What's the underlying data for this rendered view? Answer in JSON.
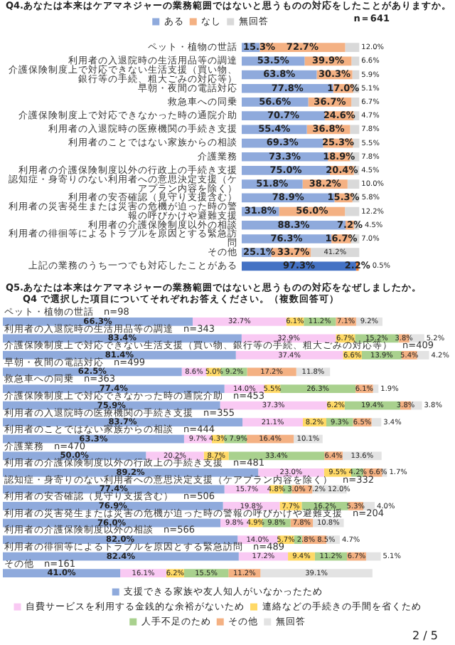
{
  "chart_data": [
    {
      "type": "bar",
      "orientation": "horizontal",
      "stacked": true,
      "grid": false,
      "tick_labels": "y",
      "legend": "top",
      "title": "Q4.あなたは本来はケアマネジャーの業務範囲ではないと思うものの対応をしたことがありますか。",
      "subtitle": "n＝641",
      "categories": [
        "ペット・植物の世話",
        "利用者の入退院時の生活用品等の調達",
        "介護保険制度上で対応できない生活支援（買い物、銀行等の手続、粗大ごみの対応等）",
        "早朝・夜間の電話対応",
        "救急車への同乗",
        "介護保険制度上で対応できなかった時の通院介助",
        "利用者の入退院時の医療機関の手続き支援",
        "利用者のことではない家族からの相談",
        "介護業務",
        "利用者の介護保険制度以外の行政上の手続き支援",
        "認知症・身寄りのない利用者への意思決定支援（ケアプラン内容を除く）",
        "利用者の安否確認（見守り支援含む）",
        "利用者の災害発生または災害の危機が迫った時の警報の呼びかけや避難支援",
        "利用者の介護保険制度以外の相談",
        "利用者の徘徊等によるトラブルを原因とする緊急訪問",
        "その他",
        "上記の業務のうち一つでも対応したことがある"
      ],
      "series": [
        {
          "name": "ある",
          "color": "#8faadc",
          "colors": [
            "#8faadc",
            "#8faadc",
            "#8faadc",
            "#8faadc",
            "#8faadc",
            "#8faadc",
            "#8faadc",
            "#8faadc",
            "#8faadc",
            "#8faadc",
            "#8faadc",
            "#8faadc",
            "#8faadc",
            "#8faadc",
            "#8faadc",
            "#8faadc",
            "#4472c4"
          ],
          "values": [
            15.3,
            53.5,
            63.8,
            77.8,
            56.6,
            70.7,
            55.4,
            69.3,
            73.3,
            75.0,
            51.8,
            78.9,
            31.8,
            88.3,
            76.3,
            25.1,
            97.3
          ],
          "value_labels": [
            "15.3%",
            "53.5%",
            "63.8%",
            "77.8%",
            "56.6%",
            "70.7%",
            "55.4%",
            "69.3%",
            "73.3%",
            "75.0%",
            "51.8%",
            "78.9%",
            "31.8%",
            "88.3%",
            "76.3%",
            "25.1%",
            "97.3%"
          ]
        },
        {
          "name": "なし",
          "color": "#f4b183",
          "colors": [
            "#f4b183",
            "#f4b183",
            "#f4b183",
            "#f4b183",
            "#f4b183",
            "#f4b183",
            "#f4b183",
            "#f4b183",
            "#f4b183",
            "#f4b183",
            "#f4b183",
            "#f4b183",
            "#f4b183",
            "#f4b183",
            "#f4b183",
            "#f4b183",
            "#ed7d31"
          ],
          "values": [
            72.7,
            39.9,
            30.3,
            17.0,
            36.7,
            24.6,
            36.8,
            25.3,
            18.9,
            20.4,
            38.2,
            15.3,
            56.0,
            7.2,
            16.7,
            33.7,
            2.2
          ],
          "value_labels": [
            "72.7%",
            "39.9%",
            "30.3%",
            "17.0%",
            "36.7%",
            "24.6%",
            "36.8%",
            "25.3%",
            "18.9%",
            "20.4%",
            "38.2%",
            "15.3%",
            "56.0%",
            "7.2%",
            "16.7%",
            "33.7%",
            "2.2%"
          ]
        },
        {
          "name": "無回答",
          "color": "#d9d9d9",
          "values": [
            12.0,
            6.6,
            5.9,
            5.1,
            6.7,
            4.7,
            7.8,
            5.5,
            7.8,
            4.5,
            10.0,
            5.8,
            12.2,
            4.5,
            7.0,
            41.2,
            0.5
          ],
          "value_labels": [
            "12.0%",
            "6.6%",
            "5.9%",
            "5.1%",
            "6.7%",
            "4.7%",
            "7.8%",
            "5.5%",
            "7.8%",
            "4.5%",
            "10.0%",
            "5.8%",
            "12.2%",
            "4.5%",
            "7.0%",
            "41.2%",
            "0.5%"
          ]
        }
      ]
    },
    {
      "type": "bar",
      "orientation": "horizontal",
      "stacked": true,
      "grid": false,
      "tick_labels": "y",
      "legend": "bottom",
      "title": "Q5.あなたは本来はケアマネジャーの業務範囲ではないと思うものの対応をなぜしましたか。",
      "subtitle": "Q4 で選択した項目についてそれぞれお答えください。（複数回答可）",
      "annotations": [
        "2 / 5"
      ],
      "categories": [
        "ペット・植物の世話　n=98",
        "利用者の入退院時の生活用品等の調達　n=343",
        "介護保険制度上で対応できない生活支援（買い物、銀行等の手続、粗大ごみの対応等）　n=409",
        "早朝・夜間の電話対応　n=499",
        "救急車への同乗　n=363",
        "介護保険制度上で対応できなかった時の通院介助　n=453",
        "利用者の入退院時の医療機関の手続き支援　n=355",
        "利用者のことではない家族からの相談　n=444",
        "介護業務　n=470",
        "利用者の介護保険制度以外の行政上の手続き支援　n=481",
        "認知症・身寄りのない利用者への意思決定支援（ケアプラン内容を除く）　n=332",
        "利用者の安否確認（見守り支援含む）　n=506",
        "利用者の災害発生または災害の危機が迫った時の警報の呼びかけや避難支援　n=204",
        "利用者の介護保険制度以外の相談　n=566",
        "利用者の徘徊等によるトラブルを原因とする緊急訪問　n=489",
        "その他　n=161"
      ],
      "series": [
        {
          "name": "支援できる家族や友人知人がいなかったため",
          "color": "#8faadc",
          "values": [
            66.3,
            83.4,
            81.4,
            62.5,
            77.4,
            75.9,
            83.7,
            63.3,
            50.0,
            89.2,
            77.4,
            76.9,
            76.0,
            82.0,
            82.4,
            41.0
          ],
          "value_labels": [
            "66.3%",
            "83.4%",
            "81.4%",
            "62.5%",
            "77.4%",
            "75.9%",
            "83.7%",
            "63.3%",
            "50.0%",
            "89.2%",
            "77.4%",
            "76.9%",
            "76.0%",
            "82.0%",
            "82.4%",
            "41.0%"
          ]
        },
        {
          "name": "自費サービスを利用する金銭的な余裕がないため",
          "color": "#f9c9f3",
          "values": [
            32.7,
            32.9,
            37.4,
            8.6,
            14.0,
            37.3,
            21.1,
            9.7,
            20.2,
            23.0,
            15.7,
            19.8,
            9.8,
            14.0,
            17.2,
            16.1
          ],
          "value_labels": [
            "32.7%",
            "32.9%",
            "37.4%",
            "8.6%",
            "14.0%",
            "37.3%",
            "21.1%",
            "9.7%",
            "20.2%",
            "23.0%",
            "15.7%",
            "19.8%",
            "9.8%",
            "14.0%",
            "17.2%",
            "16.1%"
          ]
        },
        {
          "name": "連絡などの手続きの手間を省くため",
          "color": "#ffd966",
          "values": [
            6.1,
            6.7,
            6.6,
            5.0,
            5.5,
            6.2,
            8.2,
            4.3,
            8.7,
            9.5,
            4.8,
            7.7,
            4.9,
            5.7,
            9.4,
            6.2
          ],
          "value_labels": [
            "6.1%",
            "6.7%",
            "6.6%",
            "5.0%",
            "5.5%",
            "6.2%",
            "8.2%",
            "4.3%",
            "8.7%",
            "9.5%",
            "4.8%",
            "7.7%",
            "4.9%",
            "5.7%",
            "9.4%",
            "6.2%"
          ]
        },
        {
          "name": "人手不足のため",
          "color": "#a9d18e",
          "values": [
            11.2,
            15.2,
            13.9,
            9.2,
            26.3,
            19.4,
            9.3,
            7.9,
            33.4,
            4.2,
            3.0,
            16.2,
            9.8,
            2.8,
            11.2,
            15.5
          ],
          "value_labels": [
            "11.2%",
            "15.2%",
            "13.9%",
            "9.2%",
            "26.3%",
            "19.4%",
            "9.3%",
            "7.9%",
            "33.4%",
            "4.2%",
            "3.0%",
            "16.2%",
            "9.8%",
            "2.8%",
            "11.2%",
            "15.5%"
          ]
        },
        {
          "name": "その他",
          "color": "#f4b183",
          "values": [
            7.1,
            3.8,
            5.4,
            17.2,
            6.1,
            3.8,
            6.5,
            16.4,
            6.4,
            6.6,
            7.2,
            5.3,
            7.8,
            8.5,
            6.7,
            11.2
          ],
          "value_labels": [
            "7.1%",
            "3.8%",
            "5.4%",
            "17.2%",
            "6.1%",
            "3.8%",
            "6.5%",
            "16.4%",
            "6.4%",
            "6.6%",
            "7.2%",
            "5.3%",
            "7.8%",
            "8.5%",
            "6.7%",
            "11.2%"
          ]
        },
        {
          "name": "無回答",
          "color": "#e3e3e3",
          "values": [
            9.2,
            5.2,
            4.2,
            11.8,
            1.9,
            3.8,
            3.4,
            10.1,
            13.6,
            1.7,
            12.0,
            4.0,
            10.8,
            4.7,
            5.1,
            39.1
          ],
          "value_labels": [
            "9.2%",
            "5.2%",
            "4.2%",
            "11.8%",
            "1.9%",
            "3.8%",
            "3.4%",
            "10.1%",
            "13.6%",
            "1.7%",
            "12.0%",
            "4.0%",
            "10.8%",
            "4.7%",
            "5.1%",
            "39.1%"
          ]
        }
      ]
    }
  ]
}
